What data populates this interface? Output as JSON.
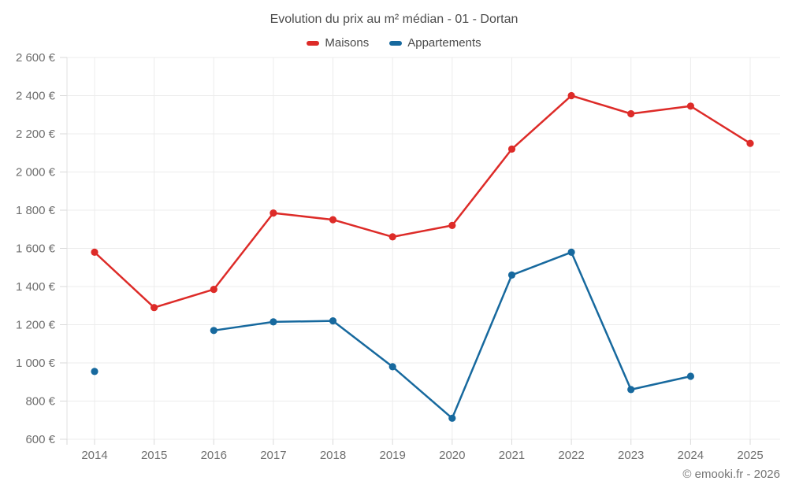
{
  "page": {
    "title": "Evolution du prix au m² médian - 01 - Dortan"
  },
  "footer": {
    "copyright": "© emooki.fr - 2026"
  },
  "chart_data": {
    "type": "line",
    "title": "Evolution du prix au m² médian - 01 - Dortan",
    "categories": [
      2014,
      2015,
      2016,
      2017,
      2018,
      2019,
      2020,
      2021,
      2022,
      2023,
      2024,
      2025
    ],
    "series": [
      {
        "name": "Maisons",
        "color": "#dd2b28",
        "values": [
          1580,
          1290,
          1385,
          1785,
          1750,
          1660,
          1720,
          2120,
          2400,
          2305,
          2345,
          2150
        ]
      },
      {
        "name": "Appartements",
        "color": "#17699e",
        "values": [
          955,
          null,
          1170,
          1215,
          1220,
          980,
          710,
          1460,
          1580,
          860,
          930,
          null
        ]
      }
    ],
    "xlabel": "",
    "ylabel": "",
    "ylim": [
      600,
      2600
    ],
    "ytick_step": 200,
    "ytick_suffix": " €",
    "grid": true,
    "legend_position": "top",
    "colors": {
      "grid": "#ececec",
      "axis": "#e0e0e0",
      "tick": "#d9d9d9",
      "tick_label": "#6f6f6f",
      "title_text": "#4d4d4d"
    }
  }
}
